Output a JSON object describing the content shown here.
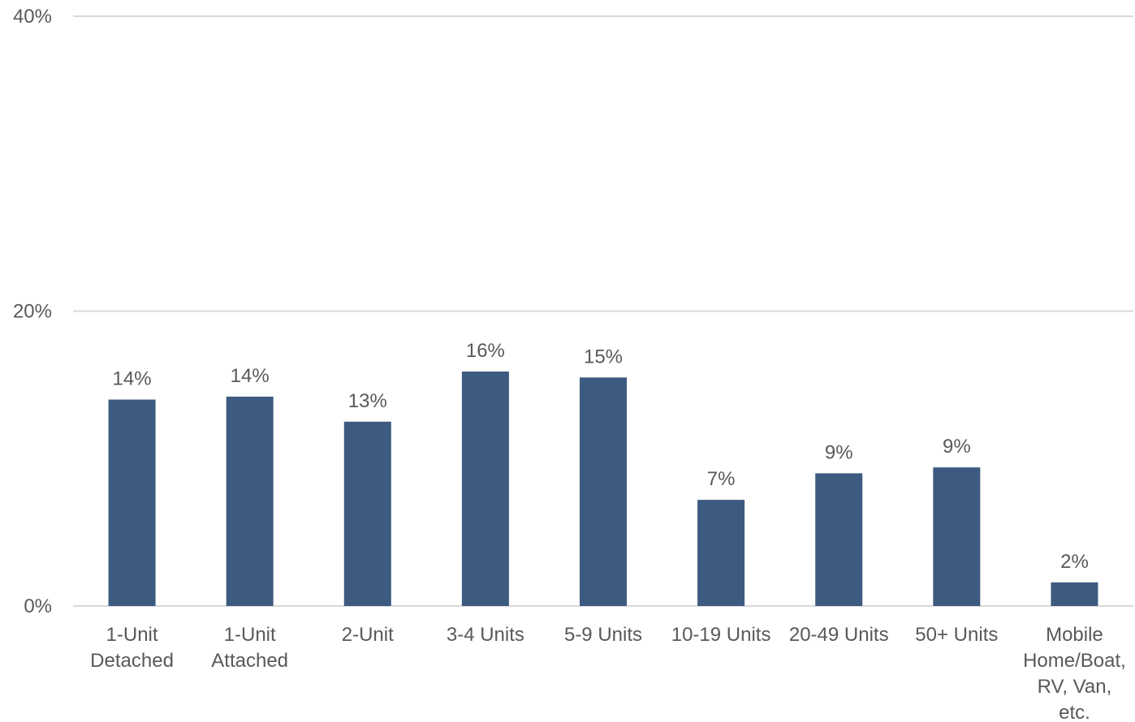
{
  "chart_data": {
    "type": "bar",
    "title": "",
    "xlabel": "",
    "ylabel": "",
    "categories": [
      "1-Unit Detached",
      "1-Unit Attached",
      "2-Unit",
      "3-4 Units",
      "5-9 Units",
      "10-19 Units",
      "20-49 Units",
      "50+ Units",
      "Mobile Home/Boat, RV, Van, etc."
    ],
    "category_lines": [
      [
        "1-Unit",
        "Detached"
      ],
      [
        "1-Unit",
        "Attached"
      ],
      [
        "2-Unit"
      ],
      [
        "3-4 Units"
      ],
      [
        "5-9 Units"
      ],
      [
        "10-19 Units"
      ],
      [
        "20-49 Units"
      ],
      [
        "50+ Units"
      ],
      [
        "Mobile",
        "Home/Boat,",
        "RV, Van,",
        "etc."
      ]
    ],
    "values": [
      14.0,
      14.2,
      12.5,
      15.9,
      15.5,
      7.2,
      9.0,
      9.4,
      1.6
    ],
    "data_labels": [
      "14%",
      "14%",
      "13%",
      "16%",
      "15%",
      "7%",
      "9%",
      "9%",
      "2%"
    ],
    "ylim": [
      0,
      40
    ],
    "yticks": [
      0,
      20,
      40
    ],
    "ytick_labels": [
      "0%",
      "20%",
      "40%"
    ],
    "grid": true,
    "legend": "none",
    "bar_color": "#3d5a80"
  }
}
